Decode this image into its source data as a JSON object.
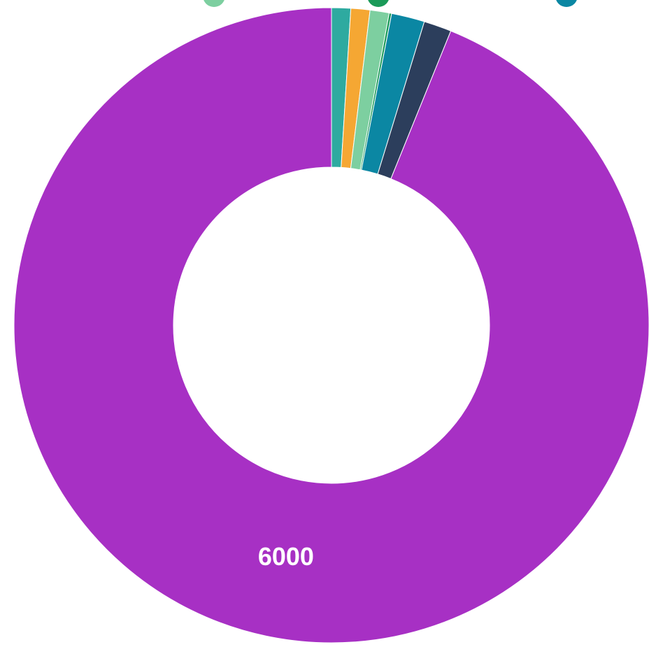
{
  "chart_data": {
    "type": "pie",
    "donut": true,
    "legend_position": "top",
    "slices": [
      {
        "value": 62,
        "color": "#2eaaa0",
        "label": ""
      },
      {
        "value": 62,
        "color": "#f5a733",
        "label": ""
      },
      {
        "value": 62,
        "color": "#7dcfa0",
        "label": ""
      },
      {
        "value": 8,
        "color": "#1a9a58",
        "label": ""
      },
      {
        "value": 108,
        "color": "#0b87a3",
        "label": ""
      },
      {
        "value": 90,
        "color": "#2c3e5c",
        "label": ""
      },
      {
        "value": 6000,
        "color": "#a730c4",
        "label": "6000"
      }
    ],
    "legend_markers": [
      {
        "color": "#7dcfa0",
        "icon": "circle-marker-icon"
      },
      {
        "color": "#1a9a58",
        "icon": "circle-marker-icon"
      },
      {
        "color": "#0b87a3",
        "icon": "circle-marker-icon"
      }
    ]
  }
}
